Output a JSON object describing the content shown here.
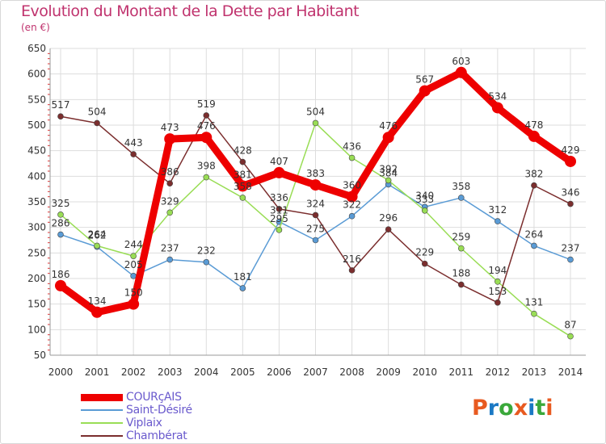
{
  "title": "Evolution du Montant de la Dette par Habitant",
  "subtitle": "(en €)",
  "logo": {
    "text": "Proxiti",
    "colors": [
      "#e85a20",
      "#1a79c4",
      "#3aa83a",
      "#e85a20",
      "#1a79c4",
      "#3aa83a",
      "#e85a20"
    ]
  },
  "chart_data": {
    "type": "line",
    "title": "Evolution du Montant de la Dette par Habitant",
    "subtitle": "(en €)",
    "x": [
      2000,
      2001,
      2002,
      2003,
      2004,
      2005,
      2006,
      2007,
      2008,
      2009,
      2010,
      2011,
      2012,
      2013,
      2014
    ],
    "ylim": [
      50,
      650
    ],
    "yticks": [
      50,
      100,
      150,
      200,
      250,
      300,
      350,
      400,
      450,
      500,
      550,
      600,
      650
    ],
    "grid": true,
    "legend_position": "bottom-left",
    "series": [
      {
        "name": "COURçAIS",
        "color": "#ee0000",
        "emphasis": true,
        "values": [
          186,
          134,
          150,
          473,
          476,
          381,
          407,
          383,
          360,
          476,
          567,
          603,
          534,
          478,
          429
        ]
      },
      {
        "name": "Saint-Désiré",
        "color": "#5a9bd5",
        "emphasis": false,
        "values": [
          286,
          262,
          205,
          237,
          232,
          181,
          311,
          275,
          322,
          384,
          340,
          358,
          312,
          264,
          237
        ]
      },
      {
        "name": "Viplaix",
        "color": "#99dd55",
        "emphasis": false,
        "values": [
          325,
          264,
          244,
          329,
          398,
          358,
          295,
          504,
          436,
          392,
          333,
          259,
          194,
          131,
          87
        ]
      },
      {
        "name": "Chambérat",
        "color": "#7b2e2e",
        "emphasis": false,
        "values": [
          517,
          504,
          443,
          386,
          519,
          428,
          336,
          324,
          216,
          296,
          229,
          188,
          153,
          382,
          346
        ]
      }
    ]
  }
}
